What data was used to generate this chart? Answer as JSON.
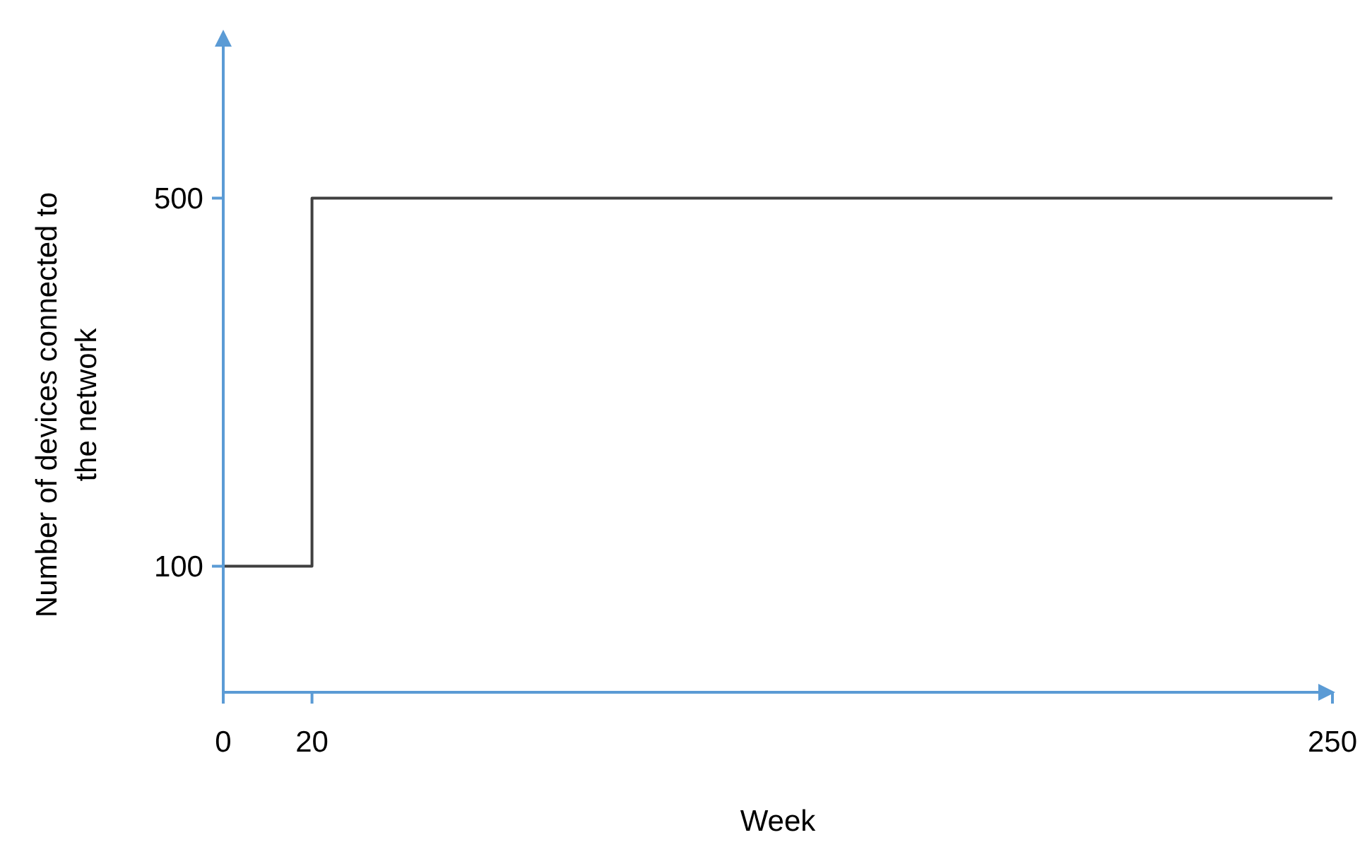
{
  "chart_data": {
    "type": "step",
    "xlabel": "Week",
    "ylabel": "Number of devices connected to the network",
    "x": [
      0,
      20,
      250
    ],
    "values": [
      100,
      500,
      500
    ],
    "color": "#404040",
    "xlim": [
      0,
      250
    ],
    "xticks": [
      0,
      20,
      250
    ],
    "ylim": [
      -37,
      680
    ],
    "yticks": [
      100,
      500
    ],
    "grid": false,
    "marker": "none",
    "line_style": "solid"
  }
}
